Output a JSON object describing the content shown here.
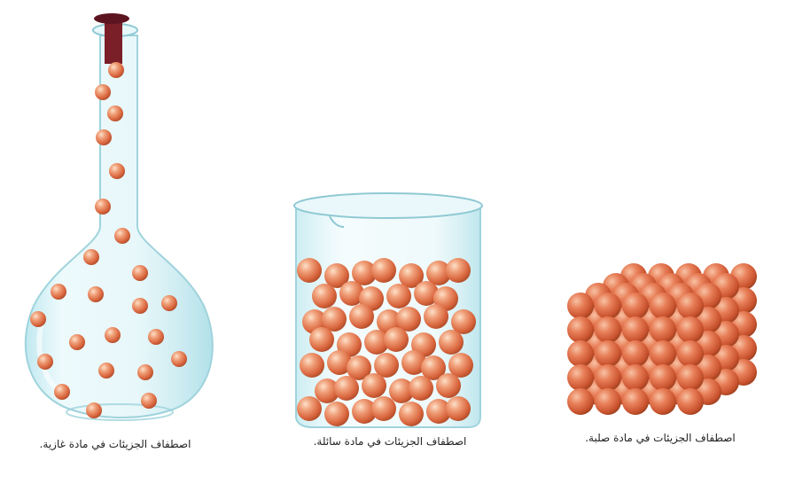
{
  "colors": {
    "particle": "#e8875f",
    "particle_highlight": "#fbd4b8",
    "particle_shadow": "#b8552f",
    "glass": "#cfeef3",
    "glass_edge": "#8fc9d3",
    "stopper": "#7a1e28"
  },
  "panels": [
    {
      "state": "gas",
      "caption": "اصطفاف الجزيئات في مادة غازية."
    },
    {
      "state": "liquid",
      "caption": "اصطفاف الجزيئات في مادة سائلة."
    },
    {
      "state": "solid",
      "caption": "اصطفاف الجزيئات في مادة صلبة."
    }
  ]
}
